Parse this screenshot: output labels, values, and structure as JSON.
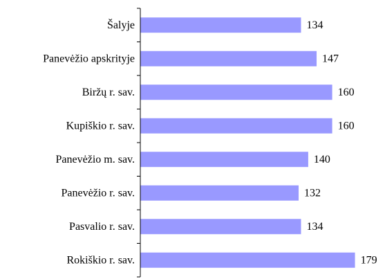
{
  "chart_data": {
    "type": "bar",
    "orientation": "horizontal",
    "categories": [
      "Šalyje",
      "Panevėžio apskrityje",
      "Biržų r. sav.",
      "Kupiškio r. sav.",
      "Panevėžio m. sav.",
      "Panevėžio r. sav.",
      "Pasvalio r. sav.",
      "Rokiškio r. sav."
    ],
    "values": [
      134,
      147,
      160,
      160,
      140,
      132,
      134,
      179
    ],
    "color": "#9999ff",
    "xlim": [
      0,
      200
    ]
  }
}
